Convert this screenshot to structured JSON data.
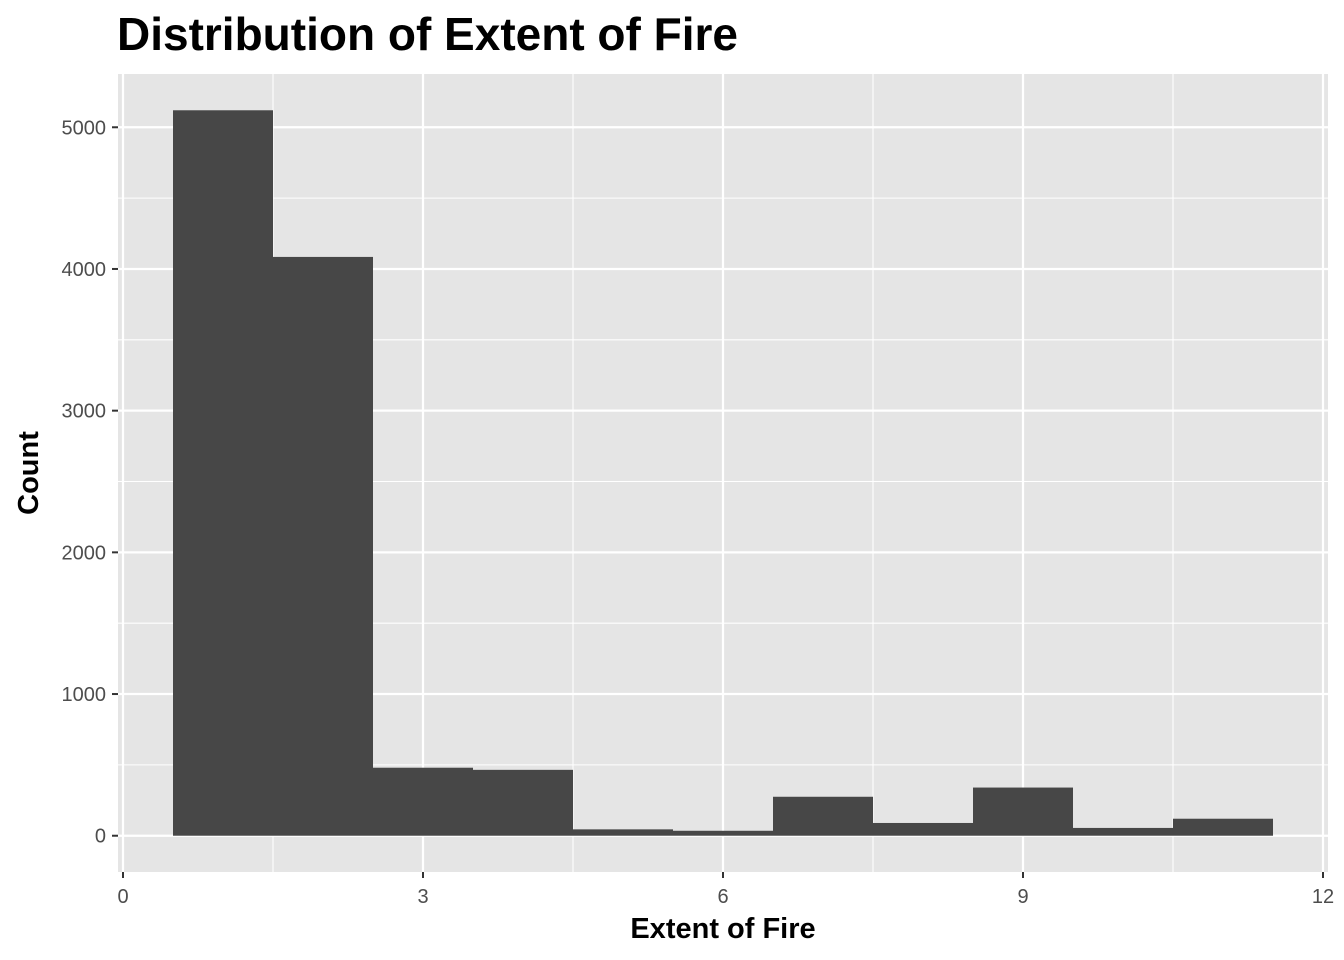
{
  "chart_data": {
    "type": "bar",
    "title": "Distribution of Extent of Fire",
    "xlabel": "Extent of Fire",
    "ylabel": "Count",
    "bins": [
      {
        "x0": 0.5,
        "x1": 1.5,
        "count": 5120
      },
      {
        "x0": 1.5,
        "x1": 2.5,
        "count": 4085
      },
      {
        "x0": 2.5,
        "x1": 3.5,
        "count": 480
      },
      {
        "x0": 3.5,
        "x1": 4.5,
        "count": 465
      },
      {
        "x0": 4.5,
        "x1": 5.5,
        "count": 45
      },
      {
        "x0": 5.5,
        "x1": 6.5,
        "count": 35
      },
      {
        "x0": 6.5,
        "x1": 7.5,
        "count": 275
      },
      {
        "x0": 7.5,
        "x1": 8.5,
        "count": 90
      },
      {
        "x0": 8.5,
        "x1": 9.5,
        "count": 340
      },
      {
        "x0": 9.5,
        "x1": 10.5,
        "count": 55
      },
      {
        "x0": 10.5,
        "x1": 11.5,
        "count": 120
      }
    ],
    "xlim": [
      -0.05,
      12.05
    ],
    "ylim": [
      -256,
      5376
    ],
    "x_ticks": [
      0,
      3,
      6,
      9,
      12
    ],
    "x_tick_labels": [
      "0",
      "3",
      "6",
      "9",
      "12"
    ],
    "y_ticks": [
      0,
      1000,
      2000,
      3000,
      4000,
      5000
    ],
    "y_tick_labels": [
      "0",
      "1000",
      "2000",
      "3000",
      "4000",
      "5000"
    ],
    "grid": true,
    "colors": {
      "panel_background": "#e5e5e5",
      "grid_major": "#ffffff",
      "bar_fill": "#474747",
      "tick_text": "#4d4d4d"
    }
  }
}
